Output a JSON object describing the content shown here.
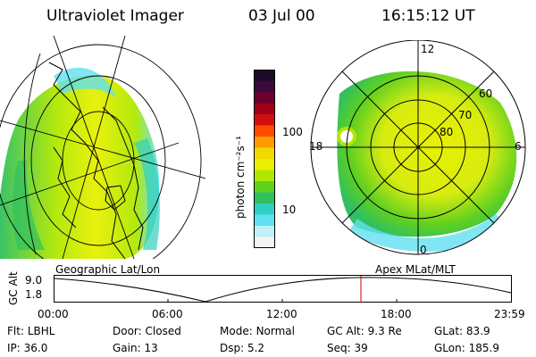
{
  "header": {
    "title": "Ultraviolet Imager",
    "date": "03 Jul 00",
    "time": "16:15:12 UT"
  },
  "colorbar": {
    "unit_label": "photon cm⁻²s⁻¹",
    "ticks": [
      "100",
      "10"
    ],
    "colors": [
      "#1b0a2a",
      "#3a0a3a",
      "#6a0030",
      "#a00018",
      "#d01010",
      "#ff4a00",
      "#ff9a00",
      "#f0d800",
      "#e8f000",
      "#b0e800",
      "#60d020",
      "#30c060",
      "#30d0c0",
      "#60e0f0",
      "#c0f0f8",
      "#f4f4f4"
    ]
  },
  "polar": {
    "mlt_labels": {
      "top": "12",
      "left": "18",
      "right": "6",
      "bottom": "0"
    },
    "lat_labels": [
      "60",
      "70",
      "80"
    ]
  },
  "timeline": {
    "y_axis_title": "GC Alt",
    "y_ticks": [
      "9.0",
      "1.8"
    ],
    "left_title": "Geographic Lat/Lon",
    "right_title": "Apex MLat/MLT",
    "x_ticks": [
      "00:00",
      "06:00",
      "12:00",
      "18:00",
      "23:59"
    ]
  },
  "info": {
    "row1": [
      {
        "key": "Flt:",
        "value": "LBHL"
      },
      {
        "key": "Door:",
        "value": "Closed"
      },
      {
        "key": "Mode:",
        "value": "Normal"
      },
      {
        "key": "GC Alt:",
        "value": "9.3 Re"
      },
      {
        "key": "GLat:",
        "value": "83.9"
      }
    ],
    "row2": [
      {
        "key": "IP:",
        "value": "36.0"
      },
      {
        "key": "Gain:",
        "value": "13"
      },
      {
        "key": "Dsp:",
        "value": "5.2"
      },
      {
        "key": "Seq:",
        "value": "39"
      },
      {
        "key": "GLon:",
        "value": "185.9"
      }
    ]
  }
}
